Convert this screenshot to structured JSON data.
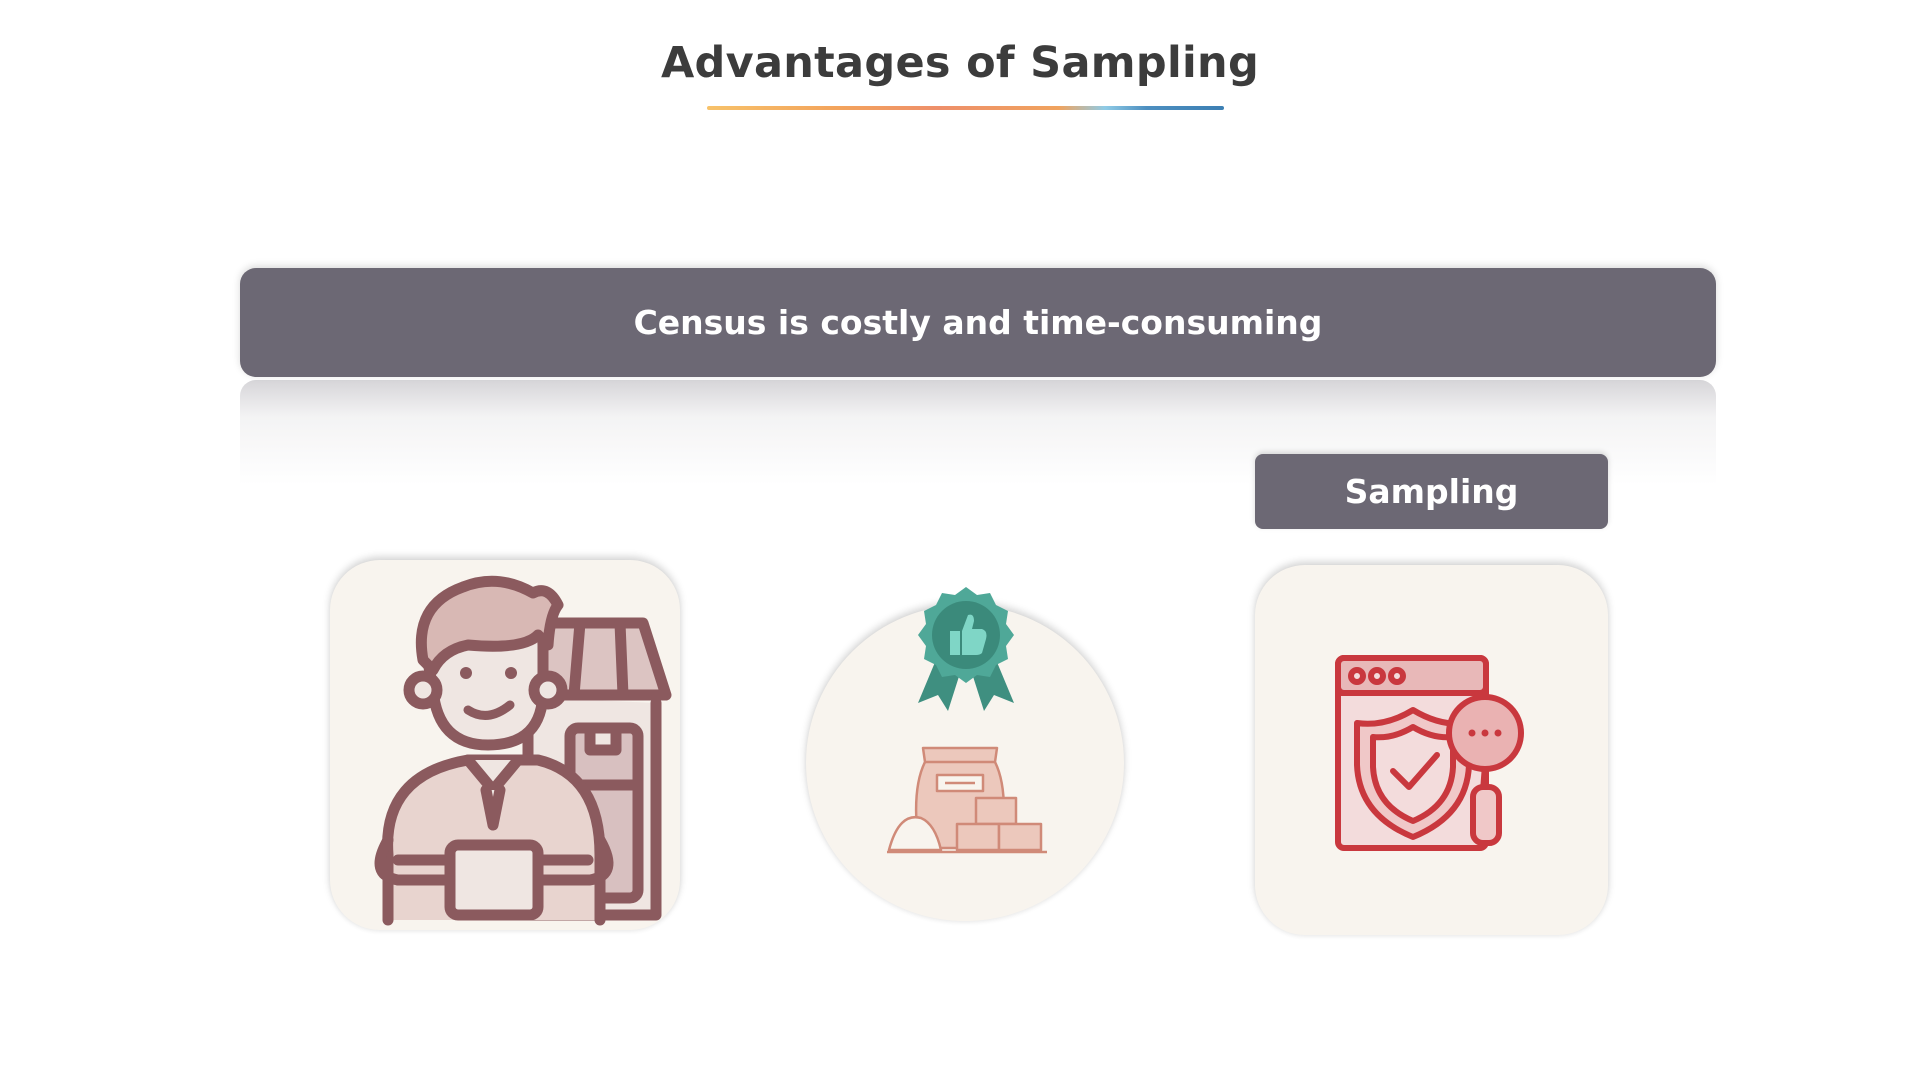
{
  "slide": {
    "title": "Advantages of Sampling",
    "banner_text": "Census is costly and time-consuming",
    "label_text": "Sampling"
  },
  "icons": {
    "left": "shopkeeper-icon",
    "middle_badge": "award-thumbs-up-icon",
    "middle": "sacks-and-boxes-icon",
    "right": "secure-web-search-icon"
  },
  "colors": {
    "title_text": "#3c3c3c",
    "banner_bg": "#6c6874",
    "card_bg": "#f8f4ee",
    "shopkeeper_stroke": "#8b5a5e",
    "badge_teal": "#3f9c8c",
    "goods_stroke": "#d08a78",
    "security_red": "#c9383e"
  }
}
